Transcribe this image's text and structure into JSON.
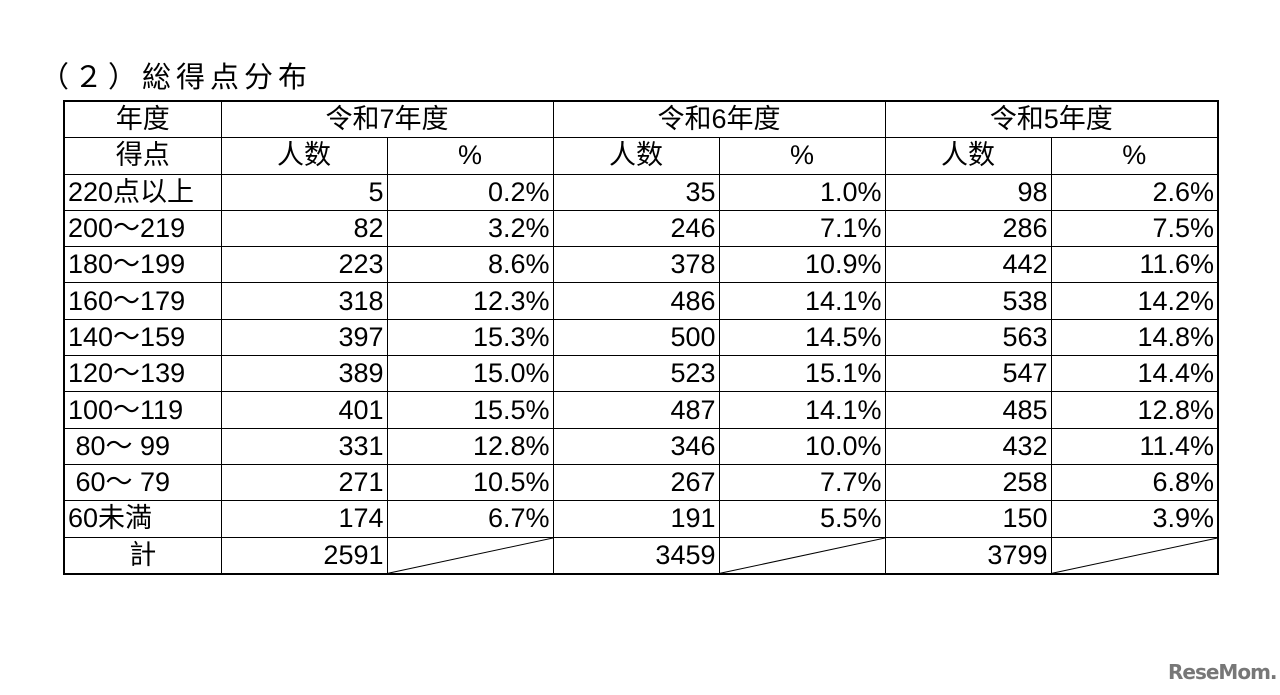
{
  "title": "（２）総得点分布",
  "header": {
    "year_label": "年度",
    "score_label": "得点",
    "years": [
      "令和7年度",
      "令和6年度",
      "令和5年度"
    ],
    "count_label": "人数",
    "percent_label": "%"
  },
  "rows": [
    {
      "score": "220点以上",
      "r7": [
        "5",
        "0.2%"
      ],
      "r6": [
        "35",
        "1.0%"
      ],
      "r5": [
        "98",
        "2.6%"
      ]
    },
    {
      "score": "200～219",
      "r7": [
        "82",
        "3.2%"
      ],
      "r6": [
        "246",
        "7.1%"
      ],
      "r5": [
        "286",
        "7.5%"
      ]
    },
    {
      "score": "180～199",
      "r7": [
        "223",
        "8.6%"
      ],
      "r6": [
        "378",
        "10.9%"
      ],
      "r5": [
        "442",
        "11.6%"
      ]
    },
    {
      "score": "160～179",
      "r7": [
        "318",
        "12.3%"
      ],
      "r6": [
        "486",
        "14.1%"
      ],
      "r5": [
        "538",
        "14.2%"
      ]
    },
    {
      "score": "140～159",
      "r7": [
        "397",
        "15.3%"
      ],
      "r6": [
        "500",
        "14.5%"
      ],
      "r5": [
        "563",
        "14.8%"
      ]
    },
    {
      "score": "120～139",
      "r7": [
        "389",
        "15.0%"
      ],
      "r6": [
        "523",
        "15.1%"
      ],
      "r5": [
        "547",
        "14.4%"
      ]
    },
    {
      "score": "100～119",
      "r7": [
        "401",
        "15.5%"
      ],
      "r6": [
        "487",
        "14.1%"
      ],
      "r5": [
        "485",
        "12.8%"
      ]
    },
    {
      "score": " 80～ 99",
      "r7": [
        "331",
        "12.8%"
      ],
      "r6": [
        "346",
        "10.0%"
      ],
      "r5": [
        "432",
        "11.4%"
      ]
    },
    {
      "score": " 60～ 79",
      "r7": [
        "271",
        "10.5%"
      ],
      "r6": [
        "267",
        "7.7%"
      ],
      "r5": [
        "258",
        "6.8%"
      ]
    },
    {
      "score": "60未満",
      "r7": [
        "174",
        "6.7%"
      ],
      "r6": [
        "191",
        "5.5%"
      ],
      "r5": [
        "150",
        "3.9%"
      ]
    }
  ],
  "total": {
    "label": "計",
    "r7": "2591",
    "r6": "3459",
    "r5": "3799"
  },
  "logo": "ReseMom"
}
